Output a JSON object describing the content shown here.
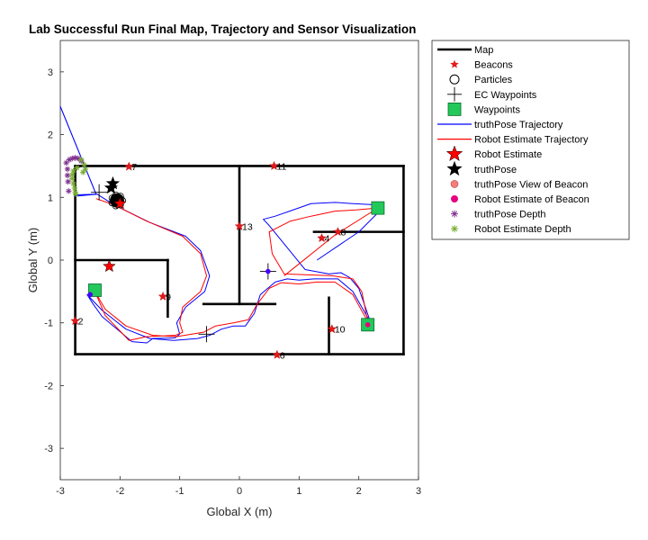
{
  "chart_data": {
    "type": "line",
    "title": "Lab Successful Run Final Map, Trajectory and Sensor Visualization",
    "xlabel": "Global X (m)",
    "ylabel": "Global Y (m)",
    "xlim": [
      -3,
      3
    ],
    "ylim": [
      -3.5,
      3.5
    ],
    "xticks": [
      "-3",
      "-2",
      "-1",
      "0",
      "1",
      "2",
      "3"
    ],
    "yticks": [
      "3",
      "2",
      "1",
      "0",
      "-1",
      "-2",
      "-3"
    ],
    "grid": false,
    "legend_position": "outside-top-right",
    "legend": [
      {
        "label": "Map",
        "kind": "line",
        "color": "#000000"
      },
      {
        "label": "Beacons",
        "kind": "star-small",
        "color": "#e31a1c"
      },
      {
        "label": "Particles",
        "kind": "circle-open",
        "color": "#000000"
      },
      {
        "label": "EC Waypoints",
        "kind": "plus",
        "color": "#000000"
      },
      {
        "label": "Waypoints",
        "kind": "square",
        "color": "#22c95a"
      },
      {
        "label": "truthPose Trajectory",
        "kind": "line",
        "color": "#0000ff"
      },
      {
        "label": "Robot Estimate Trajectory",
        "kind": "line",
        "color": "#ff0000"
      },
      {
        "label": "Robot Estimate",
        "kind": "star-red",
        "color": "#ff0000"
      },
      {
        "label": "truthPose",
        "kind": "star-black",
        "color": "#000000"
      },
      {
        "label": "truthPose View of Beacon",
        "kind": "dot-salmon",
        "color": "#f08080"
      },
      {
        "label": "Robot Estimate of Beacon",
        "kind": "dot-magenta",
        "color": "#e6007e"
      },
      {
        "label": "truthPose Depth",
        "kind": "asterisk",
        "color": "#7e2f8e"
      },
      {
        "label": "Robot Estimate Depth",
        "kind": "asterisk",
        "color": "#77ac30"
      }
    ],
    "map_segments": [
      [
        [
          -2.75,
          1.5
        ],
        [
          2.75,
          1.5
        ]
      ],
      [
        [
          -2.75,
          -1.5
        ],
        [
          2.75,
          -1.5
        ]
      ],
      [
        [
          -2.75,
          1.5
        ],
        [
          -2.75,
          -1.5
        ]
      ],
      [
        [
          2.75,
          1.5
        ],
        [
          2.75,
          -1.5
        ]
      ],
      [
        [
          0,
          1.5
        ],
        [
          0,
          -0.7
        ]
      ],
      [
        [
          -0.6,
          -0.7
        ],
        [
          0.6,
          -0.7
        ]
      ],
      [
        [
          -2.75,
          0
        ],
        [
          -1.2,
          0
        ]
      ],
      [
        [
          -1.2,
          0
        ],
        [
          -1.2,
          -0.9
        ]
      ],
      [
        [
          1.25,
          0.45
        ],
        [
          2.75,
          0.45
        ]
      ],
      [
        [
          1.5,
          -0.6
        ],
        [
          1.5,
          -1.5
        ]
      ]
    ],
    "beacons": [
      {
        "id": "7",
        "x": -1.85,
        "y": 1.49
      },
      {
        "id": "11",
        "x": 0.58,
        "y": 1.5
      },
      {
        "id": "13",
        "x": 0.0,
        "y": 0.54
      },
      {
        "id": "4",
        "x": 1.38,
        "y": 0.35
      },
      {
        "id": "8",
        "x": 1.65,
        "y": 0.45
      },
      {
        "id": "9",
        "x": -1.28,
        "y": -0.58
      },
      {
        "id": "2",
        "x": -2.75,
        "y": -0.97
      },
      {
        "id": "10",
        "x": 1.55,
        "y": -1.1
      },
      {
        "id": "6",
        "x": 0.63,
        "y": -1.51
      }
    ],
    "waypoints": [
      {
        "x": -2.42,
        "y": -0.48
      },
      {
        "x": 2.32,
        "y": 0.83
      },
      {
        "x": 2.15,
        "y": -1.03
      }
    ],
    "ec_waypoints": [
      {
        "x": -2.35,
        "y": 1.08
      },
      {
        "x": 0.48,
        "y": -0.18
      },
      {
        "x": -0.55,
        "y": -1.18
      }
    ],
    "truth_trajectory": {
      "name": "truthPose Trajectory",
      "x": [
        -2.75,
        -2.38,
        -2.1,
        -1.5,
        -0.9,
        -0.65,
        -0.5,
        -0.58,
        -0.9,
        -1.05,
        -1.0,
        -1.08,
        -1.45,
        -1.55,
        -1.8,
        -2.3,
        -2.45,
        -2.55,
        -2.3,
        -1.9,
        -1.5,
        -1.1,
        -0.7,
        -0.5,
        -0.3,
        -0.1,
        0.1,
        0.25,
        0.35,
        0.6,
        0.8,
        1.0,
        1.25,
        1.65,
        1.9,
        2.2,
        2.0,
        1.85,
        1.7,
        1.5,
        1.1,
        0.8,
        0.5,
        0.4,
        0.6,
        0.9,
        1.2,
        1.6,
        1.9,
        2.3,
        2.4,
        2.0,
        1.3
      ],
      "y": [
        1.04,
        1.05,
        0.88,
        0.6,
        0.38,
        0.15,
        -0.25,
        -0.5,
        -0.75,
        -1.0,
        -1.18,
        -1.24,
        -1.25,
        -1.32,
        -1.3,
        -0.9,
        -0.7,
        -0.55,
        -0.8,
        -1.1,
        -1.25,
        -1.28,
        -1.25,
        -1.2,
        -1.1,
        -1.05,
        -1.05,
        -0.85,
        -0.55,
        -0.35,
        -0.3,
        -0.32,
        -0.3,
        -0.3,
        -0.5,
        -1.0,
        -0.45,
        -0.28,
        -0.2,
        -0.22,
        -0.15,
        0.2,
        0.55,
        0.65,
        0.7,
        0.8,
        0.9,
        0.92,
        0.9,
        0.88,
        0.83,
        0.45,
        0.0
      ]
    },
    "estimate_trajectory": {
      "name": "Robot Estimate Trajectory",
      "x": [
        -2.4,
        -2.1,
        -1.55,
        -0.95,
        -0.65,
        -0.55,
        -0.65,
        -0.95,
        -1.0,
        -0.95,
        -1.08,
        -1.55,
        -1.85,
        -2.25,
        -2.42,
        -2.25,
        -1.9,
        -1.45,
        -1.05,
        -0.6,
        -0.4,
        -0.1,
        0.15,
        0.3,
        0.5,
        0.7,
        1.0,
        1.3,
        1.6,
        1.9,
        2.15,
        2.05,
        1.9,
        1.55,
        0.75,
        0.55,
        0.5,
        0.85,
        1.2,
        1.6,
        1.95,
        2.32,
        1.6,
        0.75
      ],
      "y": [
        0.98,
        0.88,
        0.62,
        0.38,
        0.1,
        -0.25,
        -0.5,
        -0.75,
        -1.0,
        -1.15,
        -1.2,
        -1.22,
        -1.28,
        -0.88,
        -0.5,
        -0.78,
        -1.05,
        -1.2,
        -1.22,
        -1.15,
        -1.05,
        -1.0,
        -0.95,
        -0.7,
        -0.45,
        -0.36,
        -0.38,
        -0.35,
        -0.35,
        -0.55,
        -0.98,
        -0.5,
        -0.3,
        -0.25,
        -0.22,
        0.1,
        0.45,
        0.62,
        0.7,
        0.78,
        0.8,
        0.83,
        0.4,
        -0.25
      ]
    },
    "sensor_ray": {
      "x": [
        -3.0,
        -2.4
      ],
      "y": [
        2.45,
        1.05
      ]
    },
    "sensor_line": {
      "x": [
        -2.75,
        -2.4
      ],
      "y": [
        1.02,
        1.05
      ]
    },
    "truth_depth_points": {
      "x": [
        -2.9,
        -2.85,
        -2.8,
        -2.75,
        -2.7,
        -2.65,
        -2.88,
        -2.88,
        -2.87,
        -2.86
      ],
      "y": [
        1.55,
        1.6,
        1.62,
        1.63,
        1.62,
        1.58,
        1.45,
        1.35,
        1.25,
        1.1
      ]
    },
    "estimate_depth_points": {
      "x": [
        -2.65,
        -2.6,
        -2.58,
        -2.62,
        -2.72,
        -2.78,
        -2.8,
        -2.8,
        -2.78,
        -2.76,
        -2.75,
        -2.74
      ],
      "y": [
        1.6,
        1.52,
        1.45,
        1.4,
        1.47,
        1.42,
        1.36,
        1.3,
        1.22,
        1.15,
        1.08,
        1.05
      ]
    },
    "robot_estimate_markers": [
      {
        "x": -2.0,
        "y": 0.9
      },
      {
        "x": -2.18,
        "y": -0.1
      }
    ],
    "truthpose_markers": [
      {
        "x": -2.15,
        "y": 1.15
      },
      {
        "x": -2.12,
        "y": 1.22
      }
    ],
    "particle_cluster": {
      "x": -2.05,
      "y": 0.95,
      "radius": 0.12
    },
    "beacon_view_points": [
      {
        "x": 0.48,
        "y": -0.18,
        "kind": "truth"
      },
      {
        "x": 2.15,
        "y": -1.03,
        "kind": "estimate"
      },
      {
        "x": -2.5,
        "y": -0.55,
        "kind": "truth"
      }
    ]
  }
}
